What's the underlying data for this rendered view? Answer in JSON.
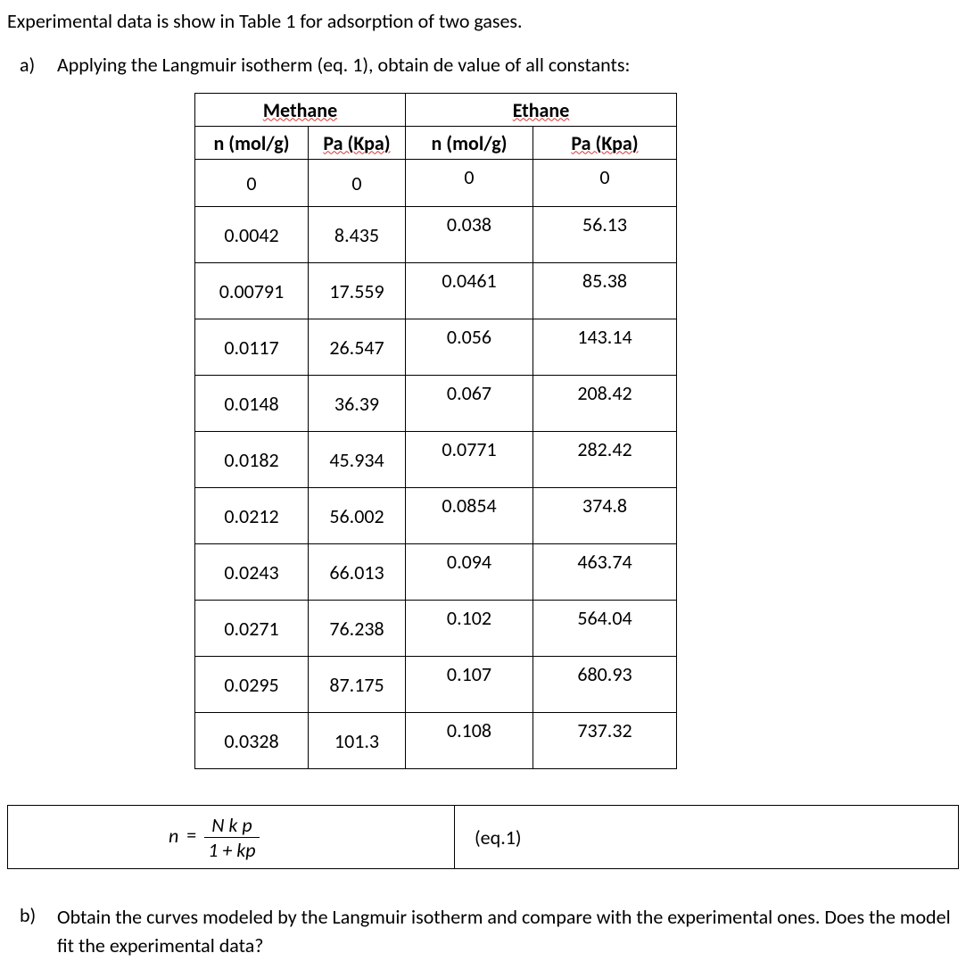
{
  "intro": "Experimental data is show in Table 1 for adsorption of two gases.",
  "partA": {
    "label": "a)",
    "text": "Applying the Langmuir isotherm (eq. 1), obtain de value of all constants:"
  },
  "table": {
    "gas1": "Methane",
    "gas2": "Ethane",
    "col_n": "n (mol/g)",
    "col_p_text": "Pa (Kpa)",
    "rows_methane": [
      {
        "n": "0",
        "p": "0"
      },
      {
        "n": "0.0042",
        "p": "8.435"
      },
      {
        "n": "0.00791",
        "p": "17.559"
      },
      {
        "n": "0.0117",
        "p": "26.547"
      },
      {
        "n": "0.0148",
        "p": "36.39"
      },
      {
        "n": "0.0182",
        "p": "45.934"
      },
      {
        "n": "0.0212",
        "p": "56.002"
      },
      {
        "n": "0.0243",
        "p": "66.013"
      },
      {
        "n": "0.0271",
        "p": "76.238"
      },
      {
        "n": "0.0295",
        "p": "87.175"
      },
      {
        "n": "0.0328",
        "p": "101.3"
      }
    ],
    "rows_ethane": [
      {
        "n": "0",
        "p": "0"
      },
      {
        "n": "0.038",
        "p": "56.13"
      },
      {
        "n": "0.0461",
        "p": "85.38"
      },
      {
        "n": "0.056",
        "p": "143.14"
      },
      {
        "n": "0.067",
        "p": "208.42"
      },
      {
        "n": "0.0771",
        "p": "282.42"
      },
      {
        "n": "0.0854",
        "p": "374.8"
      },
      {
        "n": "0.094",
        "p": "463.74"
      },
      {
        "n": "0.102",
        "p": "564.04"
      },
      {
        "n": "0.107",
        "p": "680.93"
      },
      {
        "n": "0.108",
        "p": "737.32"
      }
    ]
  },
  "equation": {
    "lhs": "n",
    "eq": "=",
    "numerator": "N k p",
    "denominator": "1 + kp",
    "label": "(eq.1)"
  },
  "partB": {
    "label": "b)",
    "text": "Obtain the curves modeled by the Langmuir isotherm and compare with the experimental ones. Does the model fit the experimental data?"
  }
}
